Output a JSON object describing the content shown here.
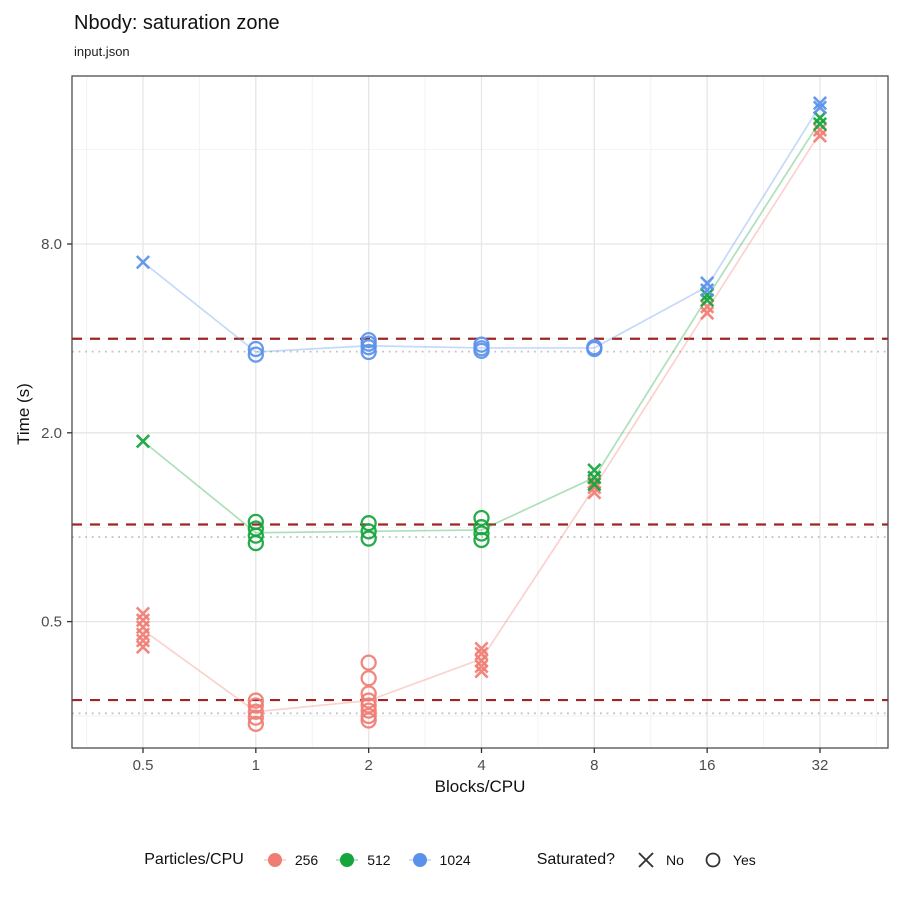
{
  "header": {
    "title": "Nbody: saturation zone",
    "subtitle": "input.json"
  },
  "chart_data": {
    "type": "scatter",
    "title": "Nbody: saturation zone",
    "subtitle": "input.json",
    "xlabel": "Blocks/CPU",
    "ylabel": "Time (s)",
    "x_scale": "log2",
    "y_scale": "log",
    "x_ticks": [
      0.5,
      1,
      2,
      4,
      8,
      16,
      32
    ],
    "x_tick_labels": [
      "0.5",
      "1",
      "2",
      "4",
      "8",
      "16",
      "32"
    ],
    "y_ticks": [
      0.5,
      2.0,
      8.0
    ],
    "y_tick_labels": [
      "0.5",
      "2.0",
      "8.0"
    ],
    "x_minor_ticks": [
      0.3536,
      0.7071,
      1.4142,
      2.8284,
      5.6569,
      11.3137,
      22.6274,
      45.2548
    ],
    "y_minor_ticks": [
      0.25,
      1.0,
      4.0,
      16.0
    ],
    "x_domain": [
      0.32,
      48
    ],
    "y_domain": [
      0.2,
      27
    ],
    "grid": true,
    "panel_border_color": "#4d4d4d",
    "major_grid_color": "#e6e6e6",
    "minor_grid_color": "#f2f2f2",
    "dashed_line_color": "#9e2626",
    "dotted_line_color": "#c3c3c3",
    "series": [
      {
        "name": "256",
        "color": "#f07d73",
        "dashed_threshold": 0.281,
        "dotted_baseline": 0.255,
        "line": [
          [
            0.5,
            0.47
          ],
          [
            1,
            0.258
          ],
          [
            2,
            0.28
          ],
          [
            4,
            0.38
          ],
          [
            8,
            1.34
          ],
          [
            16,
            4.93
          ],
          [
            32,
            18.1
          ]
        ],
        "points_no": [
          [
            0.5,
            0.53
          ],
          [
            0.5,
            0.505
          ],
          [
            0.5,
            0.48
          ],
          [
            0.5,
            0.455
          ],
          [
            0.5,
            0.435
          ],
          [
            0.5,
            0.415
          ],
          [
            4,
            0.41
          ],
          [
            4,
            0.395
          ],
          [
            4,
            0.375
          ],
          [
            4,
            0.36
          ],
          [
            4,
            0.347
          ],
          [
            8,
            1.39
          ],
          [
            8,
            1.34
          ],
          [
            8,
            1.29
          ],
          [
            16,
            5.05
          ],
          [
            16,
            4.82
          ],
          [
            32,
            18.5
          ],
          [
            32,
            17.7
          ]
        ],
        "points_yes": [
          [
            1,
            0.28
          ],
          [
            1,
            0.27
          ],
          [
            1,
            0.258
          ],
          [
            1,
            0.247
          ],
          [
            1,
            0.236
          ],
          [
            2,
            0.37
          ],
          [
            2,
            0.33
          ],
          [
            2,
            0.295
          ],
          [
            2,
            0.28
          ],
          [
            2,
            0.27
          ],
          [
            2,
            0.26
          ],
          [
            2,
            0.25
          ],
          [
            2,
            0.242
          ]
        ]
      },
      {
        "name": "512",
        "color": "#14a53c",
        "dashed_threshold": 1.02,
        "dotted_baseline": 0.93,
        "line": [
          [
            0.5,
            1.88
          ],
          [
            1,
            0.96
          ],
          [
            2,
            0.97
          ],
          [
            4,
            0.98
          ],
          [
            8,
            1.44
          ],
          [
            16,
            5.4
          ],
          [
            32,
            19.7
          ]
        ],
        "points_no": [
          [
            0.5,
            1.88
          ],
          [
            8,
            1.52
          ],
          [
            8,
            1.44
          ],
          [
            8,
            1.37
          ],
          [
            16,
            5.5
          ],
          [
            16,
            5.3
          ],
          [
            32,
            20.2
          ],
          [
            32,
            19.3
          ]
        ],
        "points_yes": [
          [
            1,
            1.04
          ],
          [
            1,
            0.99
          ],
          [
            1,
            0.94
          ],
          [
            1,
            0.89
          ],
          [
            2,
            1.03
          ],
          [
            2,
            0.97
          ],
          [
            2,
            0.92
          ],
          [
            4,
            1.07
          ],
          [
            4,
            1.0
          ],
          [
            4,
            0.955
          ],
          [
            4,
            0.91
          ]
        ]
      },
      {
        "name": "1024",
        "color": "#5a91eb",
        "dashed_threshold": 3.99,
        "dotted_baseline": 3.63,
        "line": [
          [
            0.5,
            7.0
          ],
          [
            1,
            3.62
          ],
          [
            2,
            3.79
          ],
          [
            4,
            3.73
          ],
          [
            8,
            3.73
          ],
          [
            16,
            5.85
          ],
          [
            32,
            22.1
          ]
        ],
        "points_no": [
          [
            0.5,
            7.0
          ],
          [
            16,
            6.0
          ],
          [
            16,
            5.7
          ],
          [
            32,
            22.5
          ],
          [
            32,
            21.8
          ]
        ],
        "points_yes": [
          [
            1,
            3.7
          ],
          [
            1,
            3.55
          ],
          [
            2,
            3.95
          ],
          [
            2,
            3.85
          ],
          [
            2,
            3.75
          ],
          [
            2,
            3.62
          ],
          [
            4,
            3.82
          ],
          [
            4,
            3.72
          ],
          [
            4,
            3.65
          ],
          [
            8,
            3.75
          ],
          [
            8,
            3.7
          ]
        ]
      }
    ],
    "legend": {
      "color_title": "Particles/CPU",
      "color_entries": [
        {
          "label": "256",
          "color": "#f07d73"
        },
        {
          "label": "512",
          "color": "#14a53c"
        },
        {
          "label": "1024",
          "color": "#5a91eb"
        }
      ],
      "shape_title": "Saturated?",
      "shape_entries": [
        {
          "label": "No",
          "shape": "x"
        },
        {
          "label": "Yes",
          "shape": "circle"
        }
      ]
    }
  }
}
